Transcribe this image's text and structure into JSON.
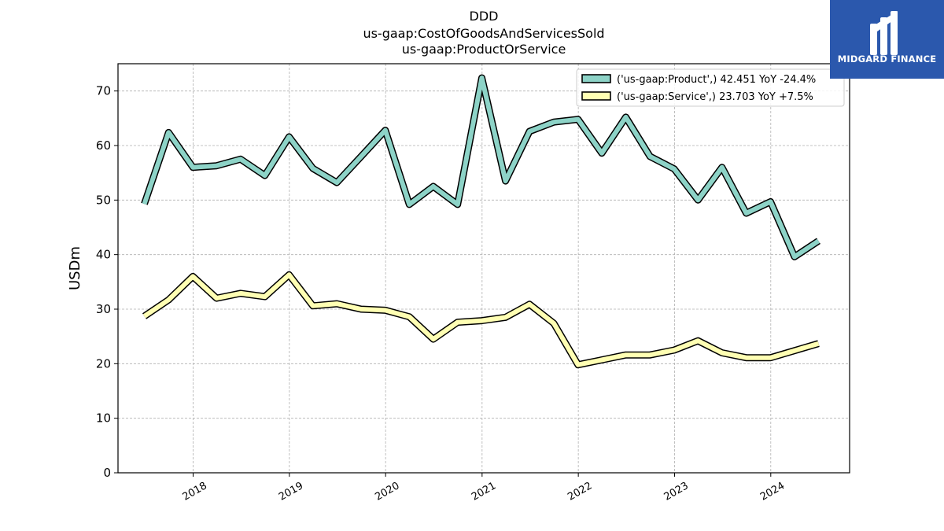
{
  "chart_data": {
    "type": "line",
    "title": "DDD",
    "subtitle_lines": [
      "us-gaap:CostOfGoodsAndServicesSold",
      "us-gaap:ProductOrService"
    ],
    "ylabel": "USDm",
    "xlabel": "",
    "ylim": [
      0,
      75
    ],
    "xlim": [
      "2017-03-22",
      "2024-10-26"
    ],
    "yticks": [
      0,
      10,
      20,
      30,
      40,
      50,
      60,
      70
    ],
    "xticks": [
      "2018",
      "2019",
      "2020",
      "2021",
      "2022",
      "2023",
      "2024"
    ],
    "grid": true,
    "legend_position": "top-right",
    "x": [
      "2017-06-30",
      "2017-09-30",
      "2017-12-31",
      "2018-03-31",
      "2018-06-30",
      "2018-09-30",
      "2018-12-31",
      "2019-03-31",
      "2019-06-30",
      "2019-09-30",
      "2019-12-31",
      "2020-03-31",
      "2020-06-30",
      "2020-09-30",
      "2020-12-31",
      "2021-03-31",
      "2021-06-30",
      "2021-09-30",
      "2021-12-31",
      "2022-03-31",
      "2022-06-30",
      "2022-09-30",
      "2022-12-31",
      "2023-03-31",
      "2023-06-30",
      "2023-09-30",
      "2023-12-31",
      "2024-03-31",
      "2024-06-30"
    ],
    "series": [
      {
        "name": "('us-gaap:Product',) 42.451 YoY -24.4%",
        "color": "#8dd3c7",
        "values": [
          49.3,
          62.4,
          56.0,
          56.3,
          57.5,
          54.5,
          61.6,
          55.8,
          53.2,
          58.0,
          62.8,
          49.2,
          52.5,
          49.2,
          72.4,
          53.5,
          62.6,
          64.3,
          64.8,
          58.6,
          65.2,
          58.0,
          55.7,
          50.0,
          56.0,
          47.6,
          49.7,
          39.6,
          42.5
        ]
      },
      {
        "name": "('us-gaap:Service',) 23.703 YoY +7.5%",
        "color": "#ffffb3",
        "values": [
          28.7,
          31.7,
          36.0,
          32.0,
          32.9,
          32.3,
          36.3,
          30.6,
          31.0,
          30.0,
          29.8,
          28.6,
          24.5,
          27.6,
          27.9,
          28.5,
          30.9,
          27.4,
          19.8,
          20.7,
          21.6,
          21.6,
          22.5,
          24.2,
          22.0,
          21.1,
          21.1,
          22.4,
          23.7
        ]
      }
    ]
  },
  "logo": {
    "name": "logo-icon",
    "text": "MIDGARD FINANCE",
    "color": "#2b58ad"
  }
}
